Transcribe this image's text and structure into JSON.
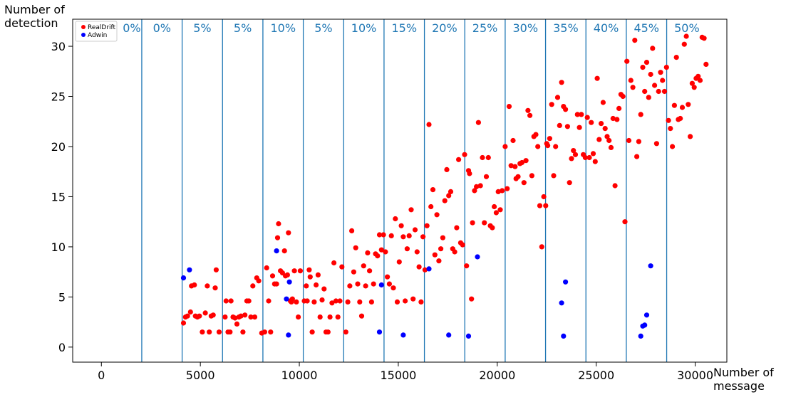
{
  "chart_data": {
    "type": "scatter",
    "ylabel": "Number of\ndetection",
    "xlabel": "Number of\nmessage",
    "xlim": [
      -1450,
      31600
    ],
    "ylim": [
      -1.5,
      32.7
    ],
    "xticks": [
      0,
      5000,
      10000,
      15000,
      20000,
      25000,
      30000
    ],
    "yticks": [
      0,
      5,
      10,
      15,
      20,
      25,
      30
    ],
    "legend_position": "top-left",
    "colors": {
      "RealDrift": "#ff0000",
      "Adwin": "#0000ff",
      "band": "#1f77b4"
    },
    "bands": {
      "boundaries": [
        2040,
        4080,
        6120,
        8160,
        10200,
        12240,
        14280,
        16320,
        18360,
        20400,
        22440,
        24480,
        26520,
        28560
      ],
      "labels": [
        "0%",
        "0%",
        "5%",
        "5%",
        "10%",
        "5%",
        "10%",
        "15%",
        "20%",
        "25%",
        "30%",
        "35%",
        "40%",
        "45%",
        "50%"
      ]
    },
    "series": [
      {
        "name": "RealDrift",
        "points": [
          [
            4150,
            2.4
          ],
          [
            4250,
            3.0
          ],
          [
            4350,
            3.1
          ],
          [
            4500,
            3.5
          ],
          [
            4550,
            6.1
          ],
          [
            4700,
            6.2
          ],
          [
            4750,
            3.1
          ],
          [
            4850,
            3.0
          ],
          [
            4950,
            3.1
          ],
          [
            5100,
            1.5
          ],
          [
            5250,
            3.4
          ],
          [
            5350,
            6.1
          ],
          [
            5450,
            1.5
          ],
          [
            5550,
            3.1
          ],
          [
            5650,
            3.2
          ],
          [
            5750,
            5.9
          ],
          [
            5800,
            7.7
          ],
          [
            5950,
            1.5
          ],
          [
            6250,
            3.0
          ],
          [
            6300,
            4.6
          ],
          [
            6400,
            1.5
          ],
          [
            6500,
            1.5
          ],
          [
            6550,
            4.6
          ],
          [
            6650,
            3.0
          ],
          [
            6750,
            2.9
          ],
          [
            6850,
            2.3
          ],
          [
            6950,
            3.0
          ],
          [
            7050,
            3.1
          ],
          [
            7150,
            1.5
          ],
          [
            7250,
            3.2
          ],
          [
            7350,
            4.6
          ],
          [
            7450,
            4.6
          ],
          [
            7550,
            3.0
          ],
          [
            7650,
            6.1
          ],
          [
            7750,
            3.0
          ],
          [
            7850,
            6.9
          ],
          [
            7950,
            6.6
          ],
          [
            8100,
            1.4
          ],
          [
            8250,
            1.5
          ],
          [
            8350,
            7.9
          ],
          [
            8450,
            4.6
          ],
          [
            8550,
            1.5
          ],
          [
            8650,
            7.1
          ],
          [
            8750,
            6.3
          ],
          [
            8850,
            6.3
          ],
          [
            8900,
            10.9
          ],
          [
            8950,
            12.3
          ],
          [
            9050,
            7.6
          ],
          [
            9150,
            7.4
          ],
          [
            9250,
            9.6
          ],
          [
            9300,
            7.1
          ],
          [
            9400,
            7.2
          ],
          [
            9450,
            11.4
          ],
          [
            9550,
            4.6
          ],
          [
            9600,
            4.5
          ],
          [
            9650,
            4.8
          ],
          [
            9750,
            7.6
          ],
          [
            9850,
            4.5
          ],
          [
            9950,
            3.0
          ],
          [
            10050,
            7.6
          ],
          [
            10250,
            4.6
          ],
          [
            10350,
            6.1
          ],
          [
            10400,
            4.6
          ],
          [
            10500,
            7.7
          ],
          [
            10550,
            7.0
          ],
          [
            10650,
            1.5
          ],
          [
            10750,
            4.5
          ],
          [
            10850,
            6.2
          ],
          [
            10950,
            7.2
          ],
          [
            11050,
            3.0
          ],
          [
            11150,
            4.7
          ],
          [
            11250,
            5.8
          ],
          [
            11350,
            1.5
          ],
          [
            11450,
            1.5
          ],
          [
            11550,
            3.0
          ],
          [
            11650,
            4.4
          ],
          [
            11750,
            8.4
          ],
          [
            11850,
            4.6
          ],
          [
            11950,
            3.0
          ],
          [
            12050,
            4.6
          ],
          [
            12150,
            8.0
          ],
          [
            12350,
            1.5
          ],
          [
            12450,
            4.5
          ],
          [
            12550,
            6.1
          ],
          [
            12650,
            11.6
          ],
          [
            12750,
            7.5
          ],
          [
            12850,
            9.9
          ],
          [
            12950,
            6.3
          ],
          [
            13050,
            4.5
          ],
          [
            13150,
            3.1
          ],
          [
            13250,
            8.1
          ],
          [
            13350,
            6.1
          ],
          [
            13450,
            9.4
          ],
          [
            13550,
            7.6
          ],
          [
            13650,
            4.5
          ],
          [
            13750,
            6.3
          ],
          [
            13850,
            9.3
          ],
          [
            13950,
            9.1
          ],
          [
            14050,
            11.2
          ],
          [
            14150,
            9.7
          ],
          [
            14250,
            11.2
          ],
          [
            14350,
            9.5
          ],
          [
            14450,
            7.0
          ],
          [
            14550,
            6.3
          ],
          [
            14650,
            11.1
          ],
          [
            14750,
            5.9
          ],
          [
            14850,
            12.8
          ],
          [
            14950,
            4.5
          ],
          [
            15050,
            8.5
          ],
          [
            15150,
            12.1
          ],
          [
            15250,
            11.0
          ],
          [
            15350,
            4.6
          ],
          [
            15450,
            9.8
          ],
          [
            15550,
            11.1
          ],
          [
            15650,
            13.7
          ],
          [
            15750,
            4.8
          ],
          [
            15850,
            11.7
          ],
          [
            15950,
            9.5
          ],
          [
            16050,
            8.0
          ],
          [
            16150,
            4.5
          ],
          [
            16250,
            11.0
          ],
          [
            16350,
            7.7
          ],
          [
            16450,
            12.1
          ],
          [
            16550,
            22.2
          ],
          [
            16650,
            14.0
          ],
          [
            16750,
            15.7
          ],
          [
            16850,
            9.2
          ],
          [
            16950,
            13.2
          ],
          [
            17050,
            8.6
          ],
          [
            17150,
            9.8
          ],
          [
            17250,
            10.9
          ],
          [
            17350,
            14.6
          ],
          [
            17450,
            17.7
          ],
          [
            17550,
            15.1
          ],
          [
            17650,
            15.5
          ],
          [
            17750,
            9.8
          ],
          [
            17850,
            9.5
          ],
          [
            17950,
            11.9
          ],
          [
            18050,
            18.7
          ],
          [
            18150,
            10.4
          ],
          [
            18250,
            10.2
          ],
          [
            18350,
            19.2
          ],
          [
            18450,
            8.1
          ],
          [
            18550,
            17.6
          ],
          [
            18600,
            17.3
          ],
          [
            18700,
            4.8
          ],
          [
            18750,
            12.4
          ],
          [
            18850,
            15.6
          ],
          [
            18950,
            16.0
          ],
          [
            19050,
            22.4
          ],
          [
            19150,
            16.1
          ],
          [
            19250,
            18.9
          ],
          [
            19350,
            12.4
          ],
          [
            19450,
            17.0
          ],
          [
            19550,
            18.9
          ],
          [
            19650,
            12.1
          ],
          [
            19750,
            11.9
          ],
          [
            19850,
            14.0
          ],
          [
            19950,
            13.4
          ],
          [
            20050,
            15.5
          ],
          [
            20150,
            13.7
          ],
          [
            20250,
            15.6
          ],
          [
            20400,
            20.0
          ],
          [
            20500,
            15.8
          ],
          [
            20600,
            24.0
          ],
          [
            20700,
            18.1
          ],
          [
            20800,
            20.6
          ],
          [
            20900,
            18.0
          ],
          [
            20950,
            16.8
          ],
          [
            21050,
            17.0
          ],
          [
            21150,
            18.3
          ],
          [
            21250,
            18.4
          ],
          [
            21350,
            16.4
          ],
          [
            21450,
            18.6
          ],
          [
            21550,
            23.6
          ],
          [
            21650,
            23.1
          ],
          [
            21750,
            17.1
          ],
          [
            21850,
            21.0
          ],
          [
            21950,
            21.2
          ],
          [
            22050,
            20.0
          ],
          [
            22150,
            14.1
          ],
          [
            22250,
            10.0
          ],
          [
            22350,
            15.0
          ],
          [
            22450,
            14.1
          ],
          [
            22500,
            20.3
          ],
          [
            22550,
            20.1
          ],
          [
            22650,
            20.8
          ],
          [
            22750,
            24.2
          ],
          [
            22850,
            17.1
          ],
          [
            22950,
            20.0
          ],
          [
            23050,
            24.9
          ],
          [
            23150,
            22.1
          ],
          [
            23250,
            26.4
          ],
          [
            23350,
            24.0
          ],
          [
            23450,
            23.7
          ],
          [
            23550,
            22.0
          ],
          [
            23650,
            16.4
          ],
          [
            23750,
            18.8
          ],
          [
            23850,
            19.6
          ],
          [
            23950,
            19.2
          ],
          [
            24050,
            23.2
          ],
          [
            24150,
            21.9
          ],
          [
            24250,
            23.2
          ],
          [
            24350,
            19.2
          ],
          [
            24450,
            18.9
          ],
          [
            24550,
            22.9
          ],
          [
            24650,
            18.9
          ],
          [
            24750,
            22.4
          ],
          [
            24850,
            19.3
          ],
          [
            24950,
            18.5
          ],
          [
            25050,
            26.8
          ],
          [
            25150,
            20.7
          ],
          [
            25250,
            22.3
          ],
          [
            25350,
            24.4
          ],
          [
            25450,
            21.8
          ],
          [
            25550,
            21.0
          ],
          [
            25650,
            20.6
          ],
          [
            25750,
            19.9
          ],
          [
            25850,
            22.8
          ],
          [
            25950,
            16.1
          ],
          [
            26050,
            22.7
          ],
          [
            26150,
            23.8
          ],
          [
            26250,
            25.2
          ],
          [
            26350,
            25.0
          ],
          [
            26450,
            12.5
          ],
          [
            26550,
            28.5
          ],
          [
            26650,
            20.6
          ],
          [
            26750,
            26.6
          ],
          [
            26850,
            25.9
          ],
          [
            26950,
            30.6
          ],
          [
            27050,
            19.0
          ],
          [
            27150,
            20.5
          ],
          [
            27250,
            23.2
          ],
          [
            27350,
            27.9
          ],
          [
            27450,
            25.5
          ],
          [
            27550,
            28.4
          ],
          [
            27650,
            24.9
          ],
          [
            27750,
            27.2
          ],
          [
            27850,
            29.8
          ],
          [
            27950,
            26.1
          ],
          [
            28050,
            20.3
          ],
          [
            28150,
            25.5
          ],
          [
            28250,
            27.4
          ],
          [
            28350,
            26.6
          ],
          [
            28450,
            25.5
          ],
          [
            28550,
            27.9
          ],
          [
            28650,
            22.6
          ],
          [
            28750,
            21.8
          ],
          [
            28850,
            20.0
          ],
          [
            28950,
            24.1
          ],
          [
            29050,
            28.9
          ],
          [
            29150,
            22.7
          ],
          [
            29250,
            22.8
          ],
          [
            29350,
            23.9
          ],
          [
            29450,
            30.2
          ],
          [
            29550,
            31.0
          ],
          [
            29650,
            24.2
          ],
          [
            29750,
            21.0
          ],
          [
            29850,
            26.3
          ],
          [
            29950,
            25.9
          ],
          [
            30050,
            26.8
          ],
          [
            30150,
            27.0
          ],
          [
            30250,
            26.6
          ],
          [
            30350,
            30.9
          ],
          [
            30450,
            30.8
          ],
          [
            30550,
            28.2
          ]
        ]
      },
      {
        "name": "Adwin",
        "points": [
          [
            4150,
            6.9
          ],
          [
            4450,
            7.7
          ],
          [
            8850,
            9.6
          ],
          [
            9350,
            4.8
          ],
          [
            9450,
            1.2
          ],
          [
            9500,
            6.5
          ],
          [
            14050,
            1.5
          ],
          [
            14150,
            6.2
          ],
          [
            15250,
            1.2
          ],
          [
            16550,
            7.8
          ],
          [
            17550,
            1.2
          ],
          [
            18550,
            1.1
          ],
          [
            19000,
            9.0
          ],
          [
            23250,
            4.4
          ],
          [
            23350,
            1.1
          ],
          [
            23450,
            6.5
          ],
          [
            27250,
            1.1
          ],
          [
            27350,
            2.1
          ],
          [
            27450,
            2.2
          ],
          [
            27550,
            3.2
          ],
          [
            27750,
            8.1
          ]
        ]
      }
    ]
  }
}
